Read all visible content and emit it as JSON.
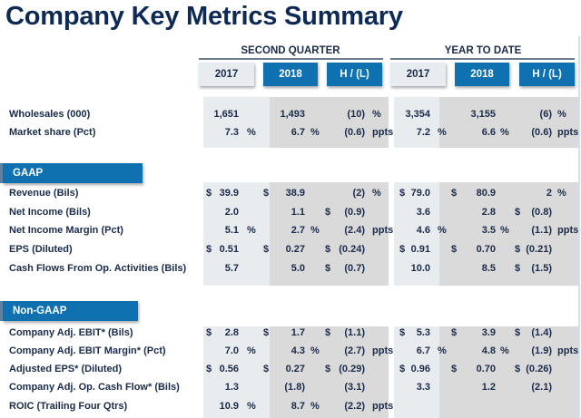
{
  "title": "Company Key Metrics Summary",
  "groups": {
    "second_quarter": {
      "label": "SECOND QUARTER",
      "columns": [
        "2017",
        "2018",
        "H / (L)"
      ]
    },
    "year_to_date": {
      "label": "YEAR TO DATE",
      "columns": [
        "2017",
        "2018",
        "H / (L)"
      ]
    }
  },
  "colors": {
    "title": "#0d2a55",
    "accent": "#0f71b0",
    "light_column": "#e9ecef",
    "dark_column": "#dadada"
  },
  "sections": [
    {
      "label": "",
      "rows": [
        {
          "label": "Wholesales (000)",
          "q2017": {
            "pre": "",
            "val": "1,651",
            "suf": ""
          },
          "q2018": {
            "pre": "",
            "val": "1,493",
            "suf": ""
          },
          "qhl": {
            "pre": "",
            "val": "(10)",
            "suf": "%"
          },
          "y2017": {
            "pre": "",
            "val": "3,354",
            "suf": ""
          },
          "y2018": {
            "pre": "",
            "val": "3,155",
            "suf": ""
          },
          "yhl": {
            "pre": "",
            "val": "(6)",
            "suf": "%"
          }
        },
        {
          "label": "Market share (Pct)",
          "q2017": {
            "pre": "",
            "val": "7.3",
            "suf": "%"
          },
          "q2018": {
            "pre": "",
            "val": "6.7",
            "suf": "%"
          },
          "qhl": {
            "pre": "",
            "val": "(0.6)",
            "suf": "ppts"
          },
          "y2017": {
            "pre": "",
            "val": "7.2",
            "suf": "%"
          },
          "y2018": {
            "pre": "",
            "val": "6.6",
            "suf": "%"
          },
          "yhl": {
            "pre": "",
            "val": "(0.6)",
            "suf": "ppts"
          }
        }
      ]
    },
    {
      "label": "GAAP",
      "rows": [
        {
          "label": "Revenue (Bils)",
          "q2017": {
            "pre": "$",
            "val": "39.9",
            "suf": ""
          },
          "q2018": {
            "pre": "$",
            "val": "38.9",
            "suf": ""
          },
          "qhl": {
            "pre": "",
            "val": "(2)",
            "suf": "%"
          },
          "y2017": {
            "pre": "$",
            "val": "79.0",
            "suf": ""
          },
          "y2018": {
            "pre": "$",
            "val": "80.9",
            "suf": ""
          },
          "yhl": {
            "pre": "",
            "val": "2",
            "suf": "%"
          }
        },
        {
          "label": "Net Income (Bils)",
          "q2017": {
            "pre": "",
            "val": "2.0",
            "suf": ""
          },
          "q2018": {
            "pre": "",
            "val": "1.1",
            "suf": ""
          },
          "qhl": {
            "pre": "$",
            "val": "(0.9)",
            "suf": ""
          },
          "y2017": {
            "pre": "",
            "val": "3.6",
            "suf": ""
          },
          "y2018": {
            "pre": "",
            "val": "2.8",
            "suf": ""
          },
          "yhl": {
            "pre": "$",
            "val": "(0.8)",
            "suf": ""
          }
        },
        {
          "label": "Net Income Margin (Pct)",
          "q2017": {
            "pre": "",
            "val": "5.1",
            "suf": "%"
          },
          "q2018": {
            "pre": "",
            "val": "2.7",
            "suf": "%"
          },
          "qhl": {
            "pre": "",
            "val": "(2.4)",
            "suf": "ppts"
          },
          "y2017": {
            "pre": "",
            "val": "4.6",
            "suf": "%"
          },
          "y2018": {
            "pre": "",
            "val": "3.5",
            "suf": "%"
          },
          "yhl": {
            "pre": "",
            "val": "(1.1)",
            "suf": "ppts"
          }
        },
        {
          "label": "EPS (Diluted)",
          "q2017": {
            "pre": "$",
            "val": "0.51",
            "suf": ""
          },
          "q2018": {
            "pre": "$",
            "val": "0.27",
            "suf": ""
          },
          "qhl": {
            "pre": "$",
            "val": "(0.24)",
            "suf": ""
          },
          "y2017": {
            "pre": "$",
            "val": "0.91",
            "suf": ""
          },
          "y2018": {
            "pre": "$",
            "val": "0.70",
            "suf": ""
          },
          "yhl": {
            "pre": "$",
            "val": "(0.21)",
            "suf": ""
          }
        },
        {
          "label": "Cash Flows From Op. Activities (Bils)",
          "q2017": {
            "pre": "",
            "val": "5.7",
            "suf": ""
          },
          "q2018": {
            "pre": "",
            "val": "5.0",
            "suf": ""
          },
          "qhl": {
            "pre": "$",
            "val": "(0.7)",
            "suf": ""
          },
          "y2017": {
            "pre": "",
            "val": "10.0",
            "suf": ""
          },
          "y2018": {
            "pre": "",
            "val": "8.5",
            "suf": ""
          },
          "yhl": {
            "pre": "$",
            "val": "(1.5)",
            "suf": ""
          }
        }
      ]
    },
    {
      "label": "Non-GAAP",
      "rows": [
        {
          "label": "Company Adj. EBIT* (Bils)",
          "q2017": {
            "pre": "$",
            "val": "2.8",
            "suf": ""
          },
          "q2018": {
            "pre": "$",
            "val": "1.7",
            "suf": ""
          },
          "qhl": {
            "pre": "$",
            "val": "(1.1)",
            "suf": ""
          },
          "y2017": {
            "pre": "$",
            "val": "5.3",
            "suf": ""
          },
          "y2018": {
            "pre": "$",
            "val": "3.9",
            "suf": ""
          },
          "yhl": {
            "pre": "$",
            "val": "(1.4)",
            "suf": ""
          }
        },
        {
          "label": "Company Adj. EBIT Margin* (Pct)",
          "q2017": {
            "pre": "",
            "val": "7.0",
            "suf": "%"
          },
          "q2018": {
            "pre": "",
            "val": "4.3",
            "suf": "%"
          },
          "qhl": {
            "pre": "",
            "val": "(2.7)",
            "suf": "ppts"
          },
          "y2017": {
            "pre": "",
            "val": "6.7",
            "suf": "%"
          },
          "y2018": {
            "pre": "",
            "val": "4.8",
            "suf": "%"
          },
          "yhl": {
            "pre": "",
            "val": "(1.9)",
            "suf": "ppts"
          }
        },
        {
          "label": "Adjusted EPS* (Diluted)",
          "q2017": {
            "pre": "$",
            "val": "0.56",
            "suf": ""
          },
          "q2018": {
            "pre": "$",
            "val": "0.27",
            "suf": ""
          },
          "qhl": {
            "pre": "$",
            "val": "(0.29)",
            "suf": ""
          },
          "y2017": {
            "pre": "$",
            "val": "0.96",
            "suf": ""
          },
          "y2018": {
            "pre": "$",
            "val": "0.70",
            "suf": ""
          },
          "yhl": {
            "pre": "$",
            "val": "(0.26)",
            "suf": ""
          }
        },
        {
          "label": "Company Adj. Op. Cash Flow* (Bils)",
          "q2017": {
            "pre": "",
            "val": "1.3",
            "suf": ""
          },
          "q2018": {
            "pre": "",
            "val": "(1.8)",
            "suf": ""
          },
          "qhl": {
            "pre": "",
            "val": "(3.1)",
            "suf": ""
          },
          "y2017": {
            "pre": "",
            "val": "3.3",
            "suf": ""
          },
          "y2018": {
            "pre": "",
            "val": "1.2",
            "suf": ""
          },
          "yhl": {
            "pre": "",
            "val": "(2.1)",
            "suf": ""
          }
        },
        {
          "label": "ROIC (Trailing Four Qtrs)",
          "q2017": {
            "pre": "",
            "val": "10.9",
            "suf": "%"
          },
          "q2018": {
            "pre": "",
            "val": "8.7",
            "suf": "%"
          },
          "qhl": {
            "pre": "",
            "val": "(2.2)",
            "suf": "ppts"
          },
          "y2017": {
            "pre": "",
            "val": "",
            "suf": ""
          },
          "y2018": {
            "pre": "",
            "val": "",
            "suf": ""
          },
          "yhl": {
            "pre": "",
            "val": "",
            "suf": ""
          }
        }
      ]
    }
  ]
}
